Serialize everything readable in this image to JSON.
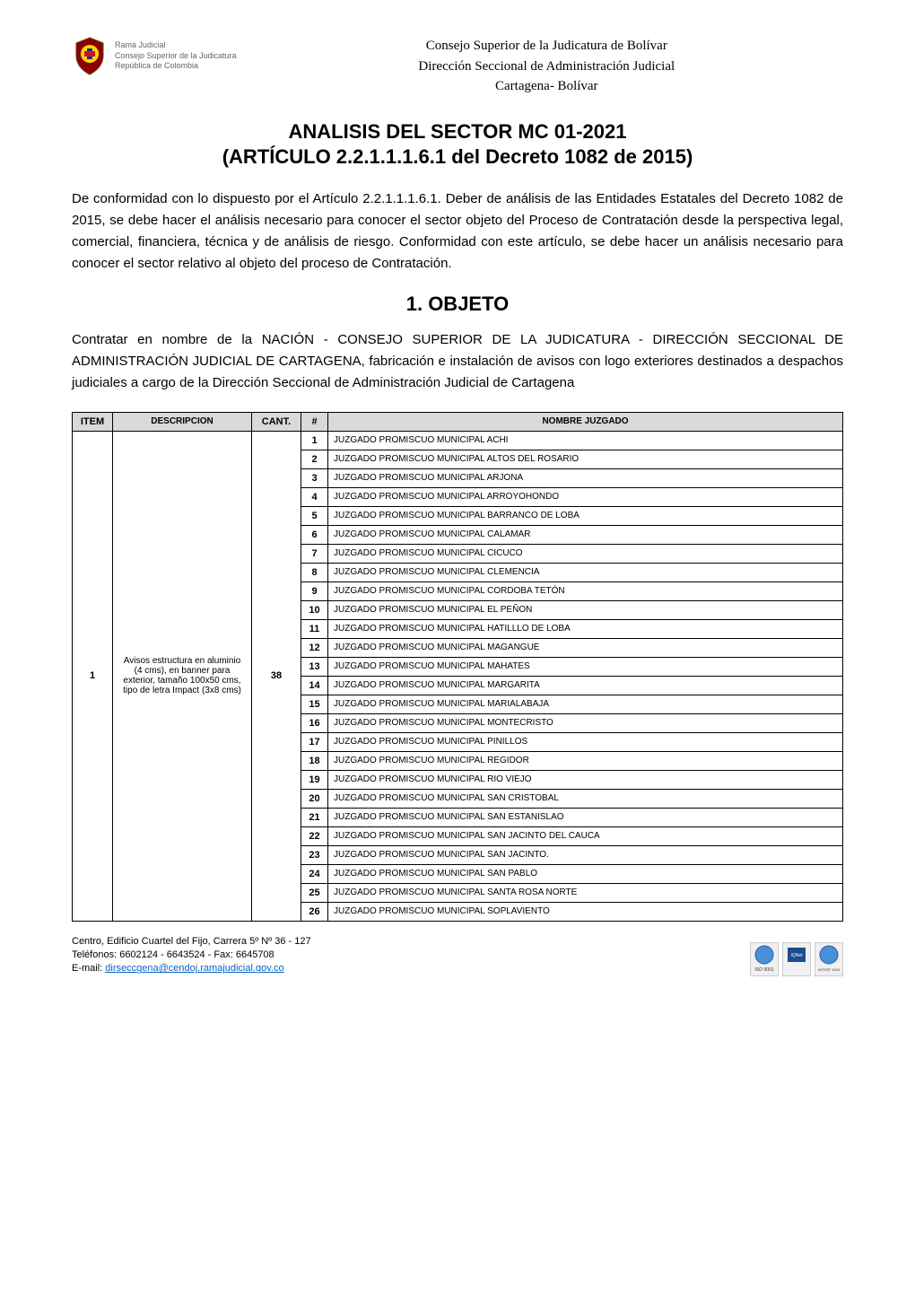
{
  "header": {
    "logo_line1": "Rama Judicial",
    "logo_line2": "Consejo Superior de la Judicatura",
    "logo_line3": "República de Colombia",
    "center_line1": "Consejo Superior de la Judicatura de Bolívar",
    "center_line2": "Dirección Seccional de Administración Judicial",
    "center_line3": "Cartagena- Bolívar"
  },
  "title": {
    "line1": "ANALISIS DEL SECTOR MC 01-2021",
    "line2": "(ARTÍCULO 2.2.1.1.1.6.1 del Decreto 1082 de 2015)"
  },
  "intro": "De conformidad con lo dispuesto por el Artículo 2.2.1.1.1.6.1. Deber de análisis de las Entidades Estatales del Decreto 1082 de 2015, se debe hacer el análisis necesario para conocer el sector objeto del Proceso de Contratación desde la perspectiva legal, comercial, financiera, técnica y de análisis de riesgo. Conformidad con este artículo, se debe hacer un análisis necesario para conocer el sector relativo al objeto del proceso de Contratación.",
  "section1_title": "1. OBJETO",
  "objeto": "Contratar en nombre de la NACIÓN - CONSEJO SUPERIOR DE LA JUDICATURA - DIRECCIÓN SECCIONAL DE ADMINISTRACIÓN JUDICIAL DE CARTAGENA, fabricación e instalación de avisos con logo exteriores destinados a despachos judiciales a cargo de la Dirección Seccional de Administración Judicial de Cartagena",
  "table": {
    "headers": {
      "item": "ITEM",
      "descripcion": "DESCRIPCION",
      "cant": "CANT.",
      "num": "#",
      "nombre": "NOMBRE JUZGADO"
    },
    "item_value": "1",
    "descripcion_value": "Avisos estructura en aluminio (4 cms), en banner para exterior, tamaño 100x50 cms, tipo de letra Impact (3x8 cms)",
    "cant_value": "38",
    "rows": [
      {
        "num": "1",
        "nombre": "JUZGADO PROMISCUO MUNICIPAL ACHI"
      },
      {
        "num": "2",
        "nombre": "JUZGADO PROMISCUO MUNICIPAL ALTOS DEL ROSARIO"
      },
      {
        "num": "3",
        "nombre": "JUZGADO PROMISCUO MUNICIPAL ARJONA"
      },
      {
        "num": "4",
        "nombre": "JUZGADO PROMISCUO MUNICIPAL ARROYOHONDO"
      },
      {
        "num": "5",
        "nombre": "JUZGADO PROMISCUO MUNICIPAL BARRANCO DE LOBA"
      },
      {
        "num": "6",
        "nombre": "JUZGADO PROMISCUO MUNICIPAL CALAMAR"
      },
      {
        "num": "7",
        "nombre": "JUZGADO PROMISCUO MUNICIPAL CICUCO"
      },
      {
        "num": "8",
        "nombre": "JUZGADO PROMISCUO MUNICIPAL CLEMENCIA"
      },
      {
        "num": "9",
        "nombre": "JUZGADO PROMISCUO MUNICIPAL CORDOBA TETÓN"
      },
      {
        "num": "10",
        "nombre": "JUZGADO PROMISCUO MUNICIPAL EL PEÑON"
      },
      {
        "num": "11",
        "nombre": "JUZGADO PROMISCUO MUNICIPAL HATILLLO DE LOBA"
      },
      {
        "num": "12",
        "nombre": "JUZGADO PROMISCUO MUNICIPAL MAGANGUE"
      },
      {
        "num": "13",
        "nombre": "JUZGADO PROMISCUO MUNICIPAL MAHATES"
      },
      {
        "num": "14",
        "nombre": "JUZGADO PROMISCUO MUNICIPAL MARGARITA"
      },
      {
        "num": "15",
        "nombre": "JUZGADO PROMISCUO MUNICIPAL MARIALABAJA"
      },
      {
        "num": "16",
        "nombre": "JUZGADO PROMISCUO MUNICIPAL MONTECRISTO"
      },
      {
        "num": "17",
        "nombre": "JUZGADO PROMISCUO MUNICIPAL PINILLOS"
      },
      {
        "num": "18",
        "nombre": "JUZGADO PROMISCUO MUNICIPAL REGIDOR"
      },
      {
        "num": "19",
        "nombre": "JUZGADO PROMISCUO MUNICIPAL RIO VIEJO"
      },
      {
        "num": "20",
        "nombre": "JUZGADO PROMISCUO MUNICIPAL SAN CRISTOBAL"
      },
      {
        "num": "21",
        "nombre": "JUZGADO PROMISCUO MUNICIPAL SAN ESTANISLAO"
      },
      {
        "num": "22",
        "nombre": "JUZGADO PROMISCUO MUNICIPAL SAN JACINTO DEL CAUCA"
      },
      {
        "num": "23",
        "nombre": "JUZGADO PROMISCUO MUNICIPAL SAN JACINTO."
      },
      {
        "num": "24",
        "nombre": "JUZGADO PROMISCUO MUNICIPAL SAN PABLO"
      },
      {
        "num": "25",
        "nombre": "JUZGADO PROMISCUO MUNICIPAL SANTA ROSA NORTE"
      },
      {
        "num": "26",
        "nombre": "JUZGADO PROMISCUO MUNICIPAL SOPLAVIENTO"
      }
    ]
  },
  "footer": {
    "line1": "Centro, Edificio Cuartel del Fijo, Carrera 5º  Nº 36 - 127",
    "line2": "Teléfonos: 6602124 - 6643524 - Fax: 6645708",
    "line3_label": "E-mail: ",
    "line3_email": "dirseccgena@cendoj.ramajudicial.gov.co",
    "cert1": "ISO 9001",
    "cert2": "IQNet",
    "cert3": "NTCGP 1000"
  },
  "colors": {
    "header_bg": "#d9d9d9",
    "border": "#000000",
    "link": "#0563c1",
    "text": "#000000",
    "background": "#ffffff"
  }
}
